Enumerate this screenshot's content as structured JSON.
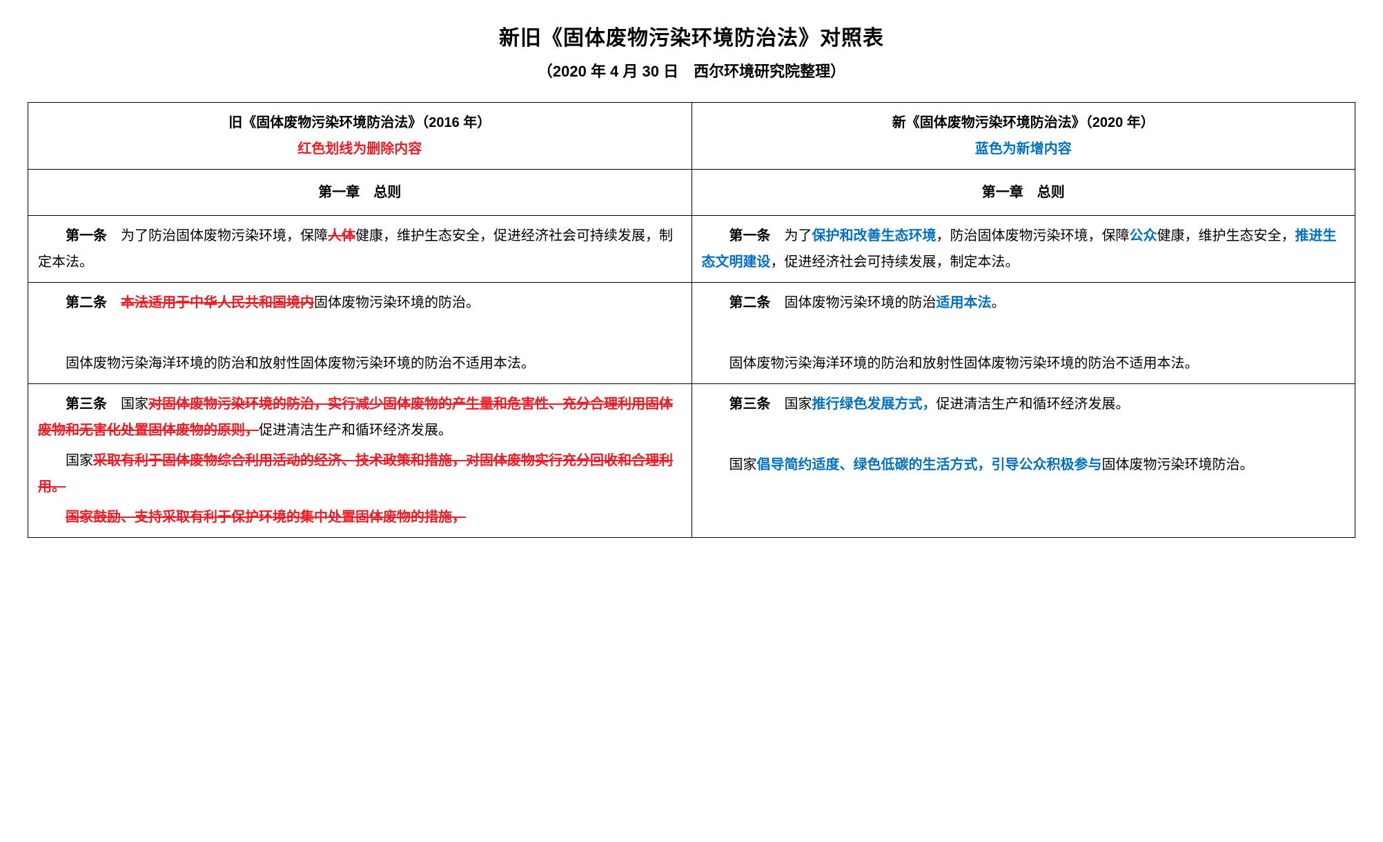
{
  "title": "新旧《固体废物污染环境防治法》对照表",
  "subtitle": "（2020 年 4 月 30 日　西尔环境研究院整理）",
  "colors": {
    "red": "#ed1c24",
    "blue": "#0070c0",
    "border": "#000000",
    "bg": "#ffffff",
    "text": "#000000"
  },
  "headers": {
    "old_title": "旧《固体废物污染环境防治法》（2016 年）",
    "old_note": "红色划线为删除内容",
    "new_title": "新《固体废物污染环境防治法》（2020 年）",
    "new_note": "蓝色为新增内容"
  },
  "chapter": {
    "old": "第一章　总则",
    "new": "第一章　总则"
  },
  "art1": {
    "old_label": "第一条",
    "old_pre": "为了防治固体废物污染环境，保障",
    "old_del": "人体",
    "old_post": "健康，维护生态安全，促进经济社会可持续发展，制定本法。",
    "new_label": "第一条",
    "new_t1": "为了",
    "new_a1": "保护和改善生态环境",
    "new_t2": "，防治固体废物污染环境，保障",
    "new_a2": "公众",
    "new_t3": "健康，维护生态安全，",
    "new_a3": "推进生态文明建设",
    "new_t4": "，促进经济社会可持续发展，制定本法。"
  },
  "art2": {
    "old_label": "第二条",
    "old_del": "本法适用于中华人民共和国境内",
    "old_post": "固体废物污染环境的防治。",
    "old_p2": "固体废物污染海洋环境的防治和放射性固体废物污染环境的防治不适用本法。",
    "new_label": "第二条",
    "new_t1": "固体废物污染环境的防治",
    "new_a1": "适用本法",
    "new_t2": "。",
    "new_p2": "固体废物污染海洋环境的防治和放射性固体废物污染环境的防治不适用本法。"
  },
  "art3": {
    "old_label": "第三条",
    "old_p1_pre": "国家",
    "old_p1_del": "对固体废物污染环境的防治，实行减少固体废物的产生量和危害性、充分合理利用固体废物和无害化处置固体废物的原则，",
    "old_p1_post": "促进清洁生产和循环经济发展。",
    "old_p2_pre": "国家",
    "old_p2_del": "采取有利于固体废物综合利用活动的经济、技术政策和措施，对固体废物实行充分回收和合理利用。",
    "old_p3_del": "国家鼓励、支持采取有利于保护环境的集中处置固体废物的措施，",
    "new_label": "第三条",
    "new_p1_pre": "国家",
    "new_p1_a1": "推行绿色发展方式，",
    "new_p1_post": "促进清洁生产和循环经济发展。",
    "new_p2_pre": "国家",
    "new_p2_a1": "倡导简约适度、绿色低碳的生活方式，引导公众积极参与",
    "new_p2_post": "固体废物污染环境防治。"
  }
}
